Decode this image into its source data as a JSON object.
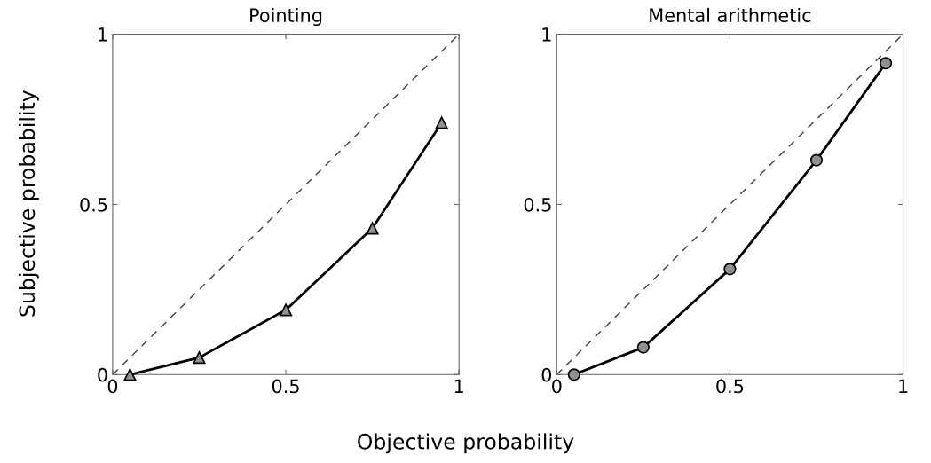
{
  "chart_data": [
    {
      "type": "line",
      "title": "Pointing",
      "xlabel": "Objective probability",
      "ylabel": "Subjective probability",
      "xlim": [
        0,
        1
      ],
      "ylim": [
        0,
        1
      ],
      "xticks": [
        0,
        0.5,
        1
      ],
      "yticks": [
        0,
        0.5,
        1
      ],
      "grid": false,
      "legend": false,
      "series": [
        {
          "x": [
            0,
            1
          ],
          "values": [
            0,
            1
          ],
          "color": "#404040",
          "line_style": "dashed",
          "marker": "none"
        },
        {
          "x": [
            0.05,
            0.25,
            0.5,
            0.75,
            0.95
          ],
          "values": [
            0,
            0.05,
            0.19,
            0.43,
            0.74
          ],
          "color": "#000000",
          "line_style": "solid",
          "marker": "triangle"
        }
      ]
    },
    {
      "type": "line",
      "title": "Mental arithmetic",
      "xlim": [
        0,
        1
      ],
      "ylim": [
        0,
        1
      ],
      "xticks": [
        0,
        0.5,
        1
      ],
      "yticks": [
        0,
        0.5,
        1
      ],
      "grid": false,
      "legend": false,
      "series": [
        {
          "x": [
            0,
            1
          ],
          "values": [
            0,
            1
          ],
          "color": "#404040",
          "line_style": "dashed",
          "marker": "none"
        },
        {
          "x": [
            0.05,
            0.25,
            0.5,
            0.75,
            0.95
          ],
          "values": [
            0,
            0.08,
            0.31,
            0.63,
            0.915
          ],
          "color": "#000000",
          "line_style": "solid",
          "marker": "circle"
        }
      ]
    }
  ]
}
